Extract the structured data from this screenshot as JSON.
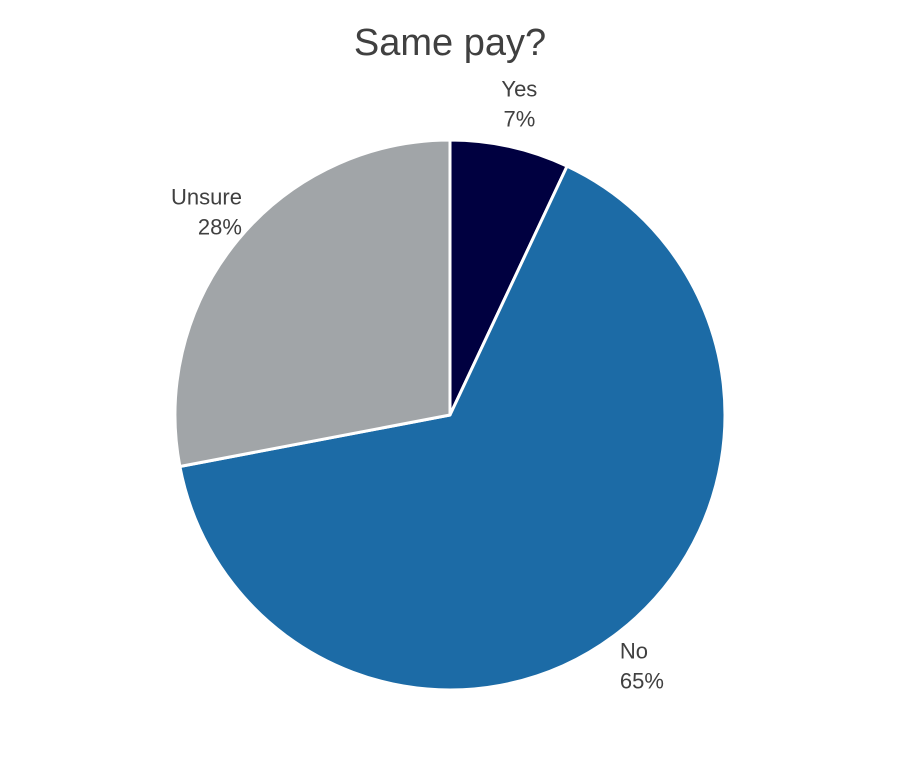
{
  "chart_data": {
    "type": "pie",
    "title": "Same pay?",
    "slices": [
      {
        "label": "Yes",
        "value": 7,
        "value_label": "7%",
        "color": "#000040"
      },
      {
        "label": "No",
        "value": 65,
        "value_label": "65%",
        "color": "#1c6ba6"
      },
      {
        "label": "Unsure",
        "value": 28,
        "value_label": "28%",
        "color": "#a1a5a8"
      }
    ],
    "start_angle": "12 o'clock",
    "direction": "clockwise",
    "legend": "none"
  }
}
